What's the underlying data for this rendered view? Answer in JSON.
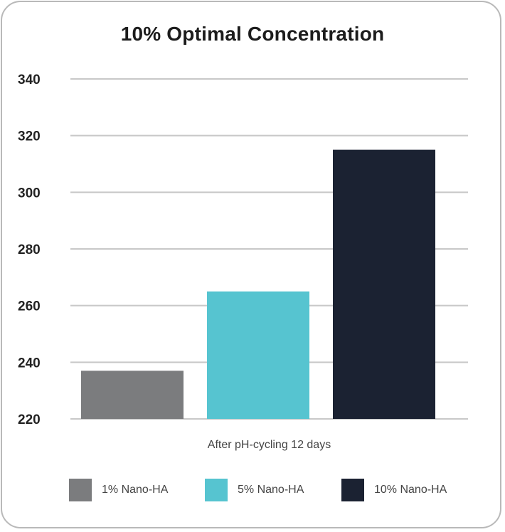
{
  "chart_data": {
    "type": "bar",
    "title": "10% Optimal Concentration",
    "xlabel": "After pH-cycling 12 days",
    "ylabel": "",
    "ylim": [
      220,
      340
    ],
    "yticks": [
      220,
      240,
      260,
      280,
      300,
      320,
      340
    ],
    "grid": true,
    "legend_position": "bottom",
    "categories": [
      "After pH-cycling 12 days"
    ],
    "series": [
      {
        "name": "1% Nano-HA",
        "values": [
          237
        ],
        "color": "#7b7c7e"
      },
      {
        "name": "5% Nano-HA",
        "values": [
          265
        ],
        "color": "#56c4d0"
      },
      {
        "name": "10% Nano-HA",
        "values": [
          315
        ],
        "color": "#1b2232"
      }
    ]
  }
}
